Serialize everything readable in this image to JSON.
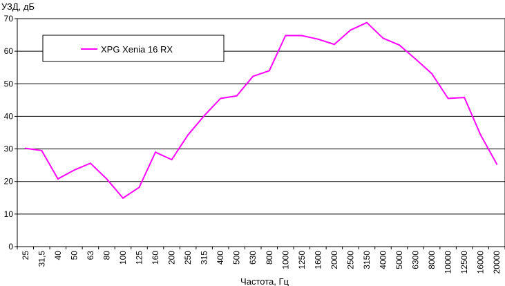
{
  "chart_data": {
    "type": "line",
    "ylabel": "УЗД, дБ",
    "xlabel": "Частота, Гц",
    "ylim": [
      0,
      70
    ],
    "yticks": [
      "0",
      "10",
      "20",
      "30",
      "40",
      "50",
      "60",
      "70"
    ],
    "grid": "horizontal",
    "legend_position": "top-left",
    "categories": [
      "25",
      "31,5",
      "40",
      "50",
      "63",
      "80",
      "100",
      "125",
      "160",
      "200",
      "250",
      "315",
      "400",
      "500",
      "630",
      "800",
      "1000",
      "1250",
      "1600",
      "2000",
      "2500",
      "3150",
      "4000",
      "5000",
      "6300",
      "8000",
      "10000",
      "12500",
      "16000",
      "20000"
    ],
    "series": [
      {
        "name": "XPG Xenia 16 RX",
        "color": "#ff00ff",
        "values": [
          30.2,
          29.5,
          20.8,
          23.5,
          25.6,
          20.8,
          14.9,
          18.2,
          29.0,
          26.7,
          34.3,
          40.2,
          45.5,
          46.3,
          52.3,
          54.0,
          64.8,
          64.8,
          63.7,
          62.1,
          66.5,
          68.8,
          64.0,
          61.9,
          57.6,
          53.1,
          45.5,
          45.8,
          34.3,
          25.3
        ]
      }
    ]
  }
}
